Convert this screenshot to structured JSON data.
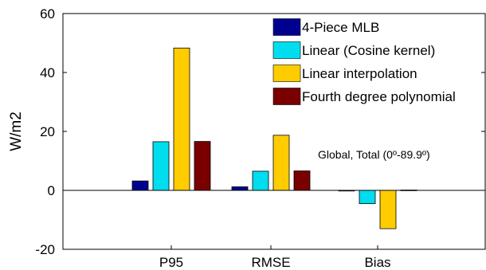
{
  "chart_data": {
    "type": "bar",
    "categories": [
      "P95",
      "RMSE",
      "Bias"
    ],
    "series": [
      {
        "name": "4-Piece MLB",
        "color": "#000090",
        "values": [
          3.2,
          1.2,
          -0.2
        ]
      },
      {
        "name": "Linear (Cosine kernel)",
        "color": "#00DDEE",
        "values": [
          16.5,
          6.5,
          -4.5
        ]
      },
      {
        "name": "Linear interpolation",
        "color": "#FFCC00",
        "values": [
          48.3,
          18.7,
          -13.0
        ]
      },
      {
        "name": "Fourth degree polynomial",
        "color": "#7A0000",
        "values": [
          16.6,
          6.6,
          0.1
        ]
      }
    ],
    "ylabel": "W/m2",
    "xlabel": "",
    "ylim": [
      -20,
      60
    ],
    "yticks": [
      -20,
      0,
      20,
      40,
      60
    ],
    "annotation": "Global, Total (0º-89.9º)",
    "legend_position": "top-right",
    "grid": false
  }
}
